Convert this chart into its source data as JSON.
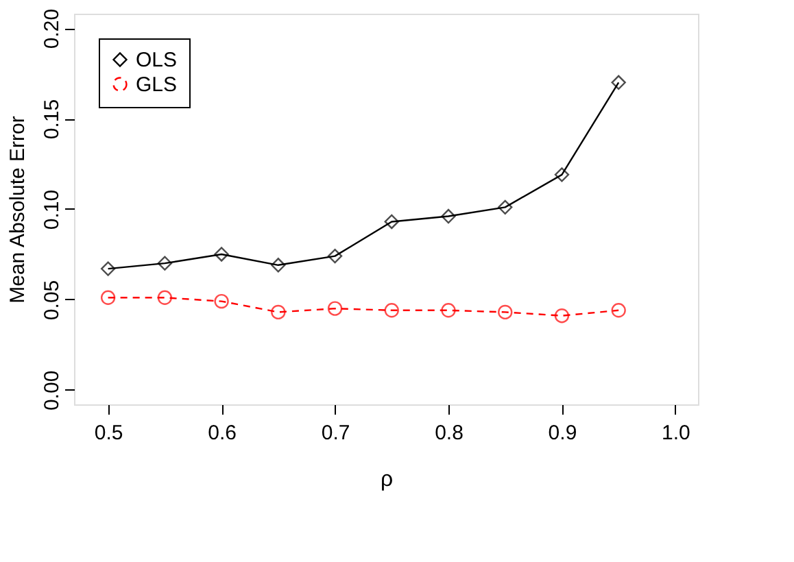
{
  "chart_data": {
    "type": "line",
    "xlabel": "ρ",
    "ylabel": "Mean Absolute Error",
    "x": [
      0.5,
      0.55,
      0.6,
      0.65,
      0.7,
      0.75,
      0.8,
      0.85,
      0.9,
      0.95
    ],
    "series": [
      {
        "name": "OLS",
        "color": "#000000",
        "marker": "diamond",
        "line_style": "solid",
        "values": [
          0.067,
          0.07,
          0.075,
          0.069,
          0.074,
          0.093,
          0.096,
          0.101,
          0.119,
          0.17
        ]
      },
      {
        "name": "GLS",
        "color": "#ff0000",
        "marker": "circle",
        "line_style": "dashed",
        "values": [
          0.051,
          0.051,
          0.049,
          0.043,
          0.045,
          0.044,
          0.044,
          0.043,
          0.041,
          0.044
        ]
      }
    ],
    "xlim": [
      0.47,
      1.02
    ],
    "ylim": [
      -0.008,
      0.208
    ],
    "xticks": [
      {
        "value": 0.5,
        "label": "0.5"
      },
      {
        "value": 0.6,
        "label": "0.6"
      },
      {
        "value": 0.7,
        "label": "0.7"
      },
      {
        "value": 0.8,
        "label": "0.8"
      },
      {
        "value": 0.9,
        "label": "0.9"
      },
      {
        "value": 1.0,
        "label": "1.0"
      }
    ],
    "yticks": [
      {
        "value": 0,
        "label": "0.00"
      },
      {
        "value": 0.05,
        "label": "0.05"
      },
      {
        "value": 0.1,
        "label": "0.10"
      },
      {
        "value": 0.15,
        "label": "0.15"
      },
      {
        "value": 0.2,
        "label": "0.20"
      }
    ],
    "grid": false,
    "legend": "top left"
  }
}
